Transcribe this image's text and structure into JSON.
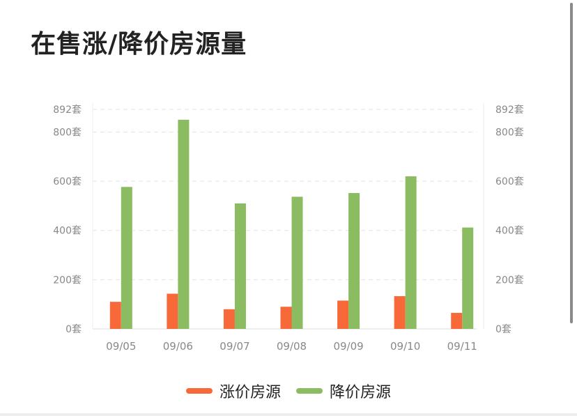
{
  "page": {
    "title": "在售涨/降价房源量"
  },
  "colors": {
    "rise": "#f76938",
    "fall": "#8cbc62",
    "grid": "#e3e3e3",
    "axis_text": "#888888"
  },
  "chart_data": {
    "type": "bar",
    "title": "在售涨/降价房源量",
    "categories": [
      "09/05",
      "09/06",
      "09/07",
      "09/08",
      "09/09",
      "09/10",
      "09/11"
    ],
    "series": [
      {
        "name": "涨价房源",
        "values": [
          110,
          143,
          80,
          90,
          115,
          133,
          65
        ]
      },
      {
        "name": "降价房源",
        "values": [
          577,
          850,
          510,
          537,
          552,
          620,
          412
        ]
      }
    ],
    "y_ticks": [
      0,
      200,
      400,
      600,
      800,
      892
    ],
    "y_tick_labels": [
      "0套",
      "200套",
      "400套",
      "600套",
      "800套",
      "892套"
    ],
    "ylim": [
      0,
      892
    ],
    "dual_axis_labels": true,
    "grid": true,
    "legend": "bottom-center"
  }
}
